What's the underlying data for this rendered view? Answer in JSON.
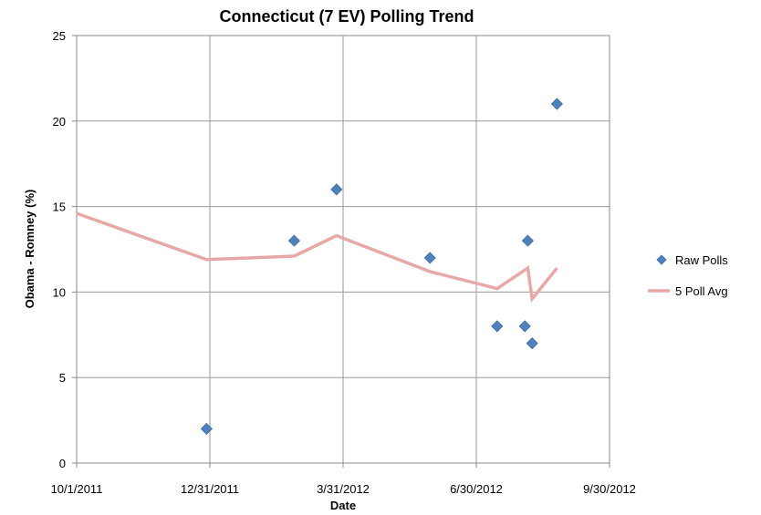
{
  "chart_data": {
    "type": "scatter",
    "title": "Connecticut (7 EV) Polling Trend",
    "xlabel": "Date",
    "ylabel": "Obama - Romney (%)",
    "x_ticks": [
      "10/1/2011",
      "12/31/2011",
      "3/31/2012",
      "6/30/2012",
      "9/30/2012"
    ],
    "xlim": [
      "2011-10-01",
      "2012-09-30"
    ],
    "ylim": [
      0,
      25
    ],
    "y_ticks": [
      0,
      5,
      10,
      15,
      20,
      25
    ],
    "grid": true,
    "legend_position": "right",
    "series": [
      {
        "name": "Raw Polls",
        "kind": "scatter",
        "marker": "diamond",
        "color": "#4f81bd",
        "points": [
          {
            "x": "2011-12-29",
            "y": 2
          },
          {
            "x": "2012-02-27",
            "y": 13
          },
          {
            "x": "2012-03-27",
            "y": 16
          },
          {
            "x": "2012-05-30",
            "y": 12
          },
          {
            "x": "2012-07-15",
            "y": 8
          },
          {
            "x": "2012-08-03",
            "y": 8
          },
          {
            "x": "2012-08-05",
            "y": 13
          },
          {
            "x": "2012-08-08",
            "y": 7
          },
          {
            "x": "2012-08-25",
            "y": 21
          }
        ]
      },
      {
        "name": "5 Poll Avg",
        "kind": "line",
        "color": "#e6a9a7",
        "points": [
          {
            "x": "2011-10-01",
            "y": 14.6
          },
          {
            "x": "2011-12-29",
            "y": 11.9
          },
          {
            "x": "2012-02-27",
            "y": 12.1
          },
          {
            "x": "2012-03-27",
            "y": 13.3
          },
          {
            "x": "2012-05-30",
            "y": 11.2
          },
          {
            "x": "2012-07-15",
            "y": 10.2
          },
          {
            "x": "2012-08-05",
            "y": 11.4
          },
          {
            "x": "2012-08-08",
            "y": 9.6
          },
          {
            "x": "2012-08-25",
            "y": 11.4
          }
        ]
      }
    ]
  }
}
